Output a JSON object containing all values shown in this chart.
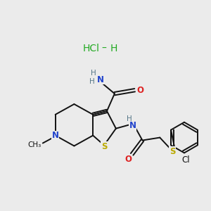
{
  "background_color": "#ebebeb",
  "hcl_color": "#22aa22",
  "atom_colors": {
    "N": "#2244cc",
    "S": "#bbaa00",
    "O": "#dd2222",
    "C": "#111111",
    "Cl": "#111111",
    "H": "#557788"
  },
  "figsize": [
    3.0,
    3.0
  ],
  "dpi": 100
}
